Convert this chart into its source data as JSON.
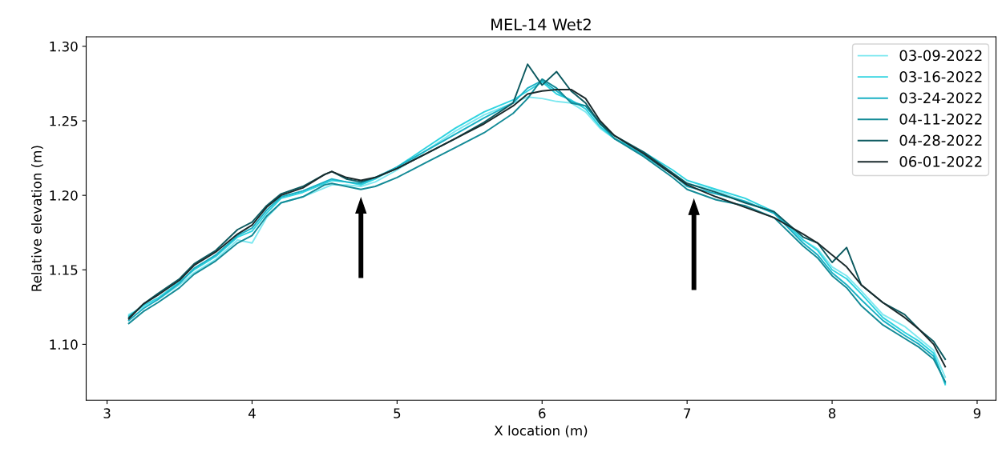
{
  "chart_data": {
    "type": "line",
    "title": "MEL-14 Wet2",
    "xlabel": "X location (m)",
    "ylabel": "Relative elevation (m)",
    "x": [
      3.15,
      3.25,
      3.35,
      3.5,
      3.6,
      3.75,
      3.9,
      4.0,
      4.1,
      4.2,
      4.35,
      4.5,
      4.55,
      4.65,
      4.75,
      4.85,
      5.0,
      5.2,
      5.4,
      5.6,
      5.8,
      5.9,
      6.0,
      6.1,
      6.2,
      6.3,
      6.4,
      6.5,
      6.7,
      6.9,
      7.0,
      7.2,
      7.4,
      7.6,
      7.8,
      7.9,
      8.0,
      8.1,
      8.2,
      8.35,
      8.5,
      8.6,
      8.7,
      8.78
    ],
    "series": [
      {
        "name": "03-09-2022",
        "color": "#7ee8f0",
        "values": [
          1.12,
          1.125,
          1.13,
          1.14,
          1.148,
          1.157,
          1.17,
          1.168,
          1.185,
          1.195,
          1.199,
          1.205,
          1.207,
          1.207,
          1.206,
          1.209,
          1.217,
          1.23,
          1.243,
          1.254,
          1.262,
          1.266,
          1.265,
          1.263,
          1.262,
          1.256,
          1.245,
          1.238,
          1.228,
          1.215,
          1.208,
          1.203,
          1.196,
          1.188,
          1.17,
          1.164,
          1.152,
          1.146,
          1.136,
          1.12,
          1.112,
          1.104,
          1.096,
          1.078
        ]
      },
      {
        "name": "03-16-2022",
        "color": "#2fd3e0",
        "values": [
          1.119,
          1.126,
          1.131,
          1.142,
          1.15,
          1.159,
          1.172,
          1.176,
          1.188,
          1.198,
          1.202,
          1.208,
          1.21,
          1.209,
          1.207,
          1.211,
          1.219,
          1.232,
          1.245,
          1.256,
          1.264,
          1.27,
          1.276,
          1.268,
          1.264,
          1.258,
          1.246,
          1.238,
          1.229,
          1.217,
          1.21,
          1.204,
          1.198,
          1.189,
          1.17,
          1.163,
          1.15,
          1.144,
          1.134,
          1.118,
          1.108,
          1.102,
          1.094,
          1.073
        ]
      },
      {
        "name": "03-24-2022",
        "color": "#1ab0c4",
        "values": [
          1.116,
          1.124,
          1.13,
          1.141,
          1.151,
          1.16,
          1.173,
          1.178,
          1.19,
          1.199,
          1.203,
          1.209,
          1.211,
          1.209,
          1.208,
          1.212,
          1.219,
          1.23,
          1.241,
          1.252,
          1.262,
          1.272,
          1.277,
          1.27,
          1.263,
          1.26,
          1.248,
          1.238,
          1.227,
          1.214,
          1.206,
          1.201,
          1.196,
          1.188,
          1.168,
          1.16,
          1.148,
          1.14,
          1.13,
          1.116,
          1.106,
          1.1,
          1.092,
          1.074
        ]
      },
      {
        "name": "04-11-2022",
        "color": "#138a96",
        "values": [
          1.114,
          1.122,
          1.128,
          1.138,
          1.147,
          1.156,
          1.168,
          1.173,
          1.186,
          1.195,
          1.199,
          1.207,
          1.208,
          1.206,
          1.204,
          1.206,
          1.212,
          1.222,
          1.232,
          1.242,
          1.255,
          1.265,
          1.278,
          1.272,
          1.262,
          1.26,
          1.249,
          1.238,
          1.226,
          1.212,
          1.204,
          1.197,
          1.193,
          1.185,
          1.166,
          1.158,
          1.146,
          1.138,
          1.126,
          1.113,
          1.104,
          1.098,
          1.09,
          1.075
        ]
      },
      {
        "name": "04-28-2022",
        "color": "#0d5a60",
        "values": [
          1.118,
          1.127,
          1.134,
          1.144,
          1.154,
          1.163,
          1.177,
          1.182,
          1.193,
          1.201,
          1.206,
          1.214,
          1.216,
          1.211,
          1.209,
          1.212,
          1.218,
          1.228,
          1.238,
          1.249,
          1.262,
          1.288,
          1.274,
          1.283,
          1.27,
          1.262,
          1.248,
          1.24,
          1.229,
          1.215,
          1.208,
          1.202,
          1.195,
          1.189,
          1.172,
          1.168,
          1.155,
          1.165,
          1.14,
          1.128,
          1.12,
          1.11,
          1.102,
          1.09
        ]
      },
      {
        "name": "06-01-2022",
        "color": "#1a2a2c",
        "values": [
          1.117,
          1.127,
          1.133,
          1.143,
          1.153,
          1.162,
          1.174,
          1.18,
          1.192,
          1.2,
          1.205,
          1.214,
          1.216,
          1.212,
          1.21,
          1.212,
          1.218,
          1.228,
          1.238,
          1.248,
          1.26,
          1.268,
          1.27,
          1.271,
          1.271,
          1.265,
          1.25,
          1.24,
          1.228,
          1.214,
          1.207,
          1.199,
          1.192,
          1.185,
          1.174,
          1.168,
          1.16,
          1.152,
          1.14,
          1.128,
          1.118,
          1.11,
          1.1,
          1.085
        ]
      }
    ],
    "xlim": [
      2.856,
      9.13
    ],
    "xticks": [
      3,
      4,
      5,
      6,
      7,
      8,
      9
    ],
    "ylim": [
      1.0625,
      1.3064
    ],
    "yticks": [
      {
        "value": 1.1,
        "label": "1.10"
      },
      {
        "value": 1.15,
        "label": "1.15"
      },
      {
        "value": 1.2,
        "label": "1.20"
      },
      {
        "value": 1.25,
        "label": "1.25"
      },
      {
        "value": 1.3,
        "label": "1.30"
      }
    ],
    "legend": "top right",
    "grid": false
  }
}
